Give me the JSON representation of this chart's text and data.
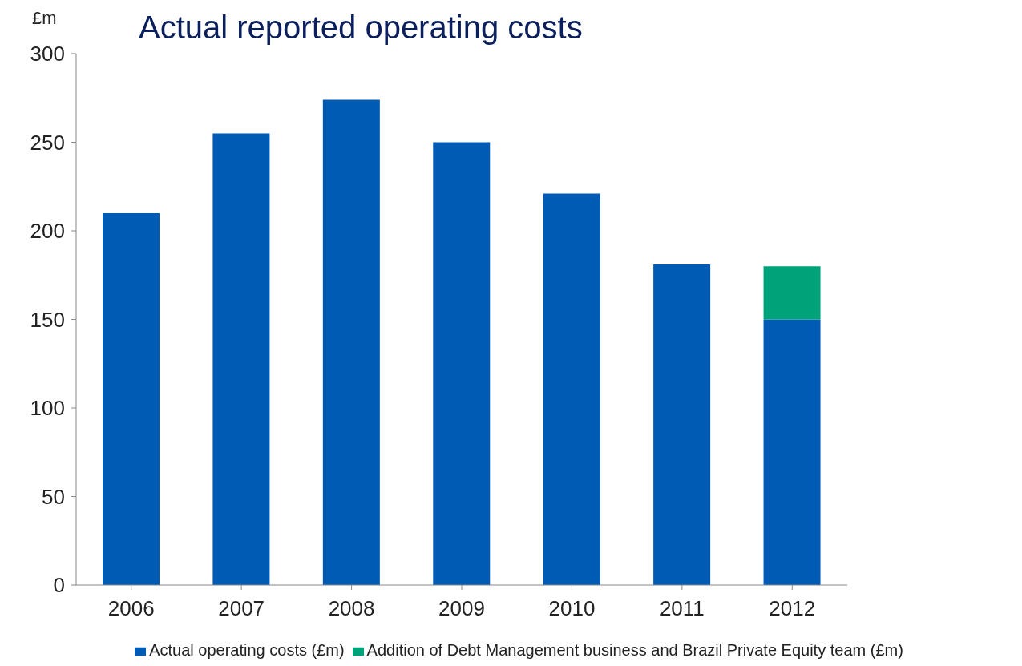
{
  "chart_data": {
    "type": "bar",
    "title": "Actual reported operating costs",
    "ylabel": "£m",
    "categories": [
      "2006",
      "2007",
      "2008",
      "2009",
      "2010",
      "2011",
      "2012"
    ],
    "series": [
      {
        "name": "Actual operating costs (£m)",
        "color": "#005bb5",
        "values": [
          210,
          255,
          274,
          250,
          221,
          181,
          150
        ]
      },
      {
        "name": "Addition of Debt Management business and Brazil Private Equity team (£m)",
        "color": "#00a27a",
        "values": [
          null,
          null,
          null,
          null,
          null,
          null,
          30
        ]
      }
    ],
    "stacked": true,
    "ylim": [
      0,
      300
    ],
    "yticks": [
      0,
      50,
      100,
      150,
      200,
      250,
      300
    ],
    "grid": false,
    "legend": "bottom"
  }
}
